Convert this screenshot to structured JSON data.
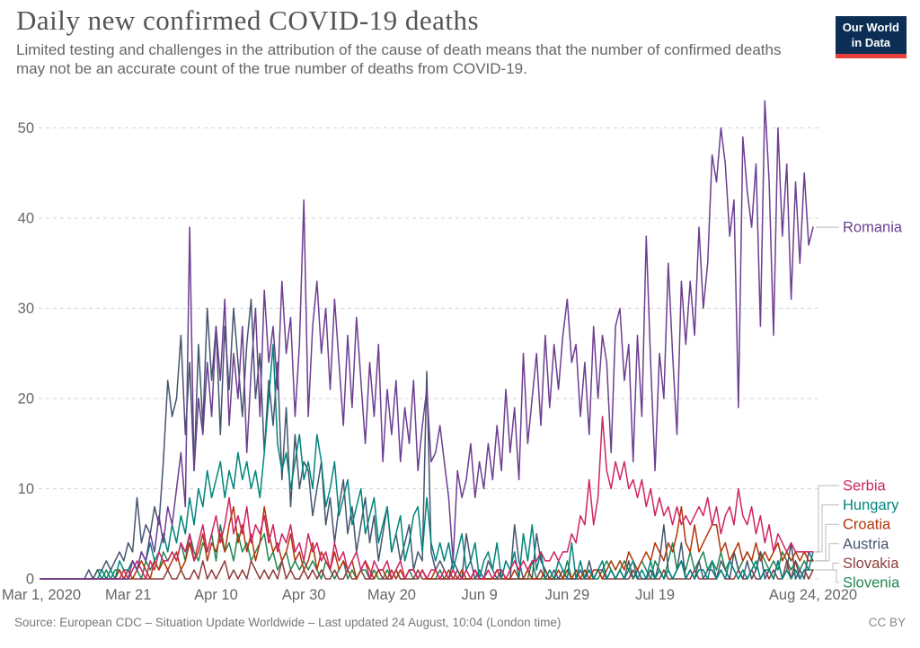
{
  "header": {
    "title": "Daily new confirmed COVID-19 deaths",
    "subtitle": "Limited testing and challenges in the attribution of the cause of death means that the number of confirmed deaths may not be an accurate count of the true number of deaths from COVID-19.",
    "logo": {
      "line1": "Our World",
      "line2": "in Data",
      "bg_color": "#0c2d54",
      "accent_color": "#e5403b"
    }
  },
  "footer": {
    "source": "Source: European CDC – Situation Update Worldwide – Last updated 24 August, 10:04 (London time)",
    "license": "CC BY"
  },
  "chart_data": {
    "type": "line",
    "title": "Daily new confirmed COVID-19 deaths",
    "x_start_date": "Mar 1, 2020",
    "x_end_date": "Aug 24, 2020",
    "x_tick_labels": [
      "Mar 1, 2020",
      "Mar 21",
      "Apr 10",
      "Apr 30",
      "May 20",
      "Jun 9",
      "Jun 29",
      "Jul 19",
      "Aug 24, 2020"
    ],
    "x_tick_days": [
      0,
      20,
      40,
      60,
      80,
      100,
      120,
      140,
      176
    ],
    "y_ticks": [
      0,
      10,
      20,
      30,
      40,
      50
    ],
    "ylim": [
      0,
      53
    ],
    "grid": "dashed-horizontal",
    "legend_position": "right-of-lines",
    "gridline_color": "#d5d5d5",
    "axis_text_color": "#666666",
    "series": [
      {
        "name": "Romania",
        "color": "#6d3e91",
        "values": [
          0,
          0,
          0,
          0,
          0,
          0,
          0,
          0,
          0,
          0,
          0,
          0,
          0,
          0,
          0,
          0,
          0,
          0,
          0,
          0,
          0,
          2,
          1,
          3,
          2,
          5,
          3,
          7,
          4,
          8,
          6,
          10,
          14,
          8,
          39,
          12,
          20,
          16,
          24,
          18,
          28,
          22,
          31,
          17,
          25,
          20,
          28,
          14,
          23,
          30,
          18,
          32,
          24,
          28,
          21,
          33,
          25,
          29,
          18,
          26,
          42,
          18,
          28,
          33,
          25,
          30,
          21,
          31,
          24,
          17,
          27,
          19,
          29,
          22,
          15,
          24,
          18,
          26,
          13,
          21,
          16,
          22,
          13,
          19,
          15,
          22,
          12,
          17,
          21,
          13,
          14,
          17,
          13,
          9,
          2,
          12,
          9,
          11,
          15,
          9,
          13,
          10,
          15,
          11,
          17,
          12,
          21,
          14,
          19,
          11,
          25,
          15,
          20,
          25,
          17,
          27,
          19,
          26,
          21,
          27,
          31,
          24,
          26,
          18,
          24,
          16,
          28,
          20,
          27,
          24,
          14,
          28,
          30,
          22,
          26,
          13,
          27,
          18,
          38,
          24,
          12,
          25,
          20,
          35,
          25,
          16,
          33,
          26,
          33,
          27,
          39,
          30,
          35,
          47,
          44,
          50,
          46,
          38,
          42,
          19,
          49,
          43,
          39,
          46,
          28,
          53,
          44,
          27,
          50,
          38,
          46,
          31,
          44,
          35,
          45,
          37,
          39
        ]
      },
      {
        "name": "Serbia",
        "color": "#cf2364",
        "values": [
          0,
          0,
          0,
          0,
          0,
          0,
          0,
          0,
          0,
          0,
          0,
          0,
          0,
          0,
          0,
          0,
          0,
          0,
          0,
          1,
          0,
          1,
          2,
          1,
          0,
          2,
          1,
          3,
          2,
          2,
          3,
          2,
          4,
          3,
          5,
          2,
          4,
          6,
          3,
          5,
          7,
          4,
          6,
          9,
          5,
          7,
          5,
          8,
          4,
          6,
          5,
          7,
          4,
          6,
          3,
          5,
          4,
          6,
          3,
          4,
          2,
          5,
          3,
          4,
          2,
          3,
          1,
          4,
          2,
          3,
          1,
          2,
          3,
          1,
          2,
          0,
          2,
          1,
          1,
          2,
          0,
          1,
          2,
          0,
          1,
          1,
          0,
          1,
          0,
          1,
          1,
          0,
          1,
          0,
          1,
          0,
          0,
          1,
          0,
          1,
          0,
          0,
          1,
          0,
          1,
          1,
          0,
          1,
          2,
          1,
          2,
          1,
          2,
          2,
          3,
          2,
          2,
          3,
          2,
          3,
          3,
          5,
          4,
          7,
          6,
          11,
          6,
          9,
          18,
          12,
          10,
          13,
          11,
          13,
          10,
          11,
          9,
          11,
          8,
          10,
          7,
          9,
          7,
          8,
          6,
          8,
          6,
          7,
          6,
          7,
          8,
          7,
          9,
          6,
          8,
          5,
          7,
          8,
          6,
          10,
          7,
          6,
          8,
          5,
          7,
          4,
          6,
          3,
          5,
          4,
          3,
          4,
          3,
          3,
          3,
          3,
          3
        ]
      },
      {
        "name": "Hungary",
        "color": "#00847e",
        "values": [
          0,
          0,
          0,
          0,
          0,
          0,
          0,
          0,
          0,
          0,
          0,
          0,
          0,
          0,
          1,
          0,
          1,
          0,
          2,
          1,
          1,
          2,
          1,
          3,
          2,
          4,
          2,
          3,
          5,
          3,
          6,
          4,
          7,
          5,
          9,
          6,
          10,
          8,
          12,
          9,
          11,
          13,
          9,
          12,
          10,
          14,
          11,
          13,
          10,
          12,
          9,
          14,
          20,
          26,
          15,
          12,
          14,
          10,
          13,
          16,
          11,
          13,
          10,
          16,
          13,
          8,
          10,
          13,
          7,
          9,
          11,
          6,
          8,
          10,
          5,
          7,
          9,
          4,
          6,
          8,
          3,
          5,
          7,
          2,
          4,
          7,
          8,
          3,
          9,
          4,
          2,
          4,
          2,
          4,
          1,
          3,
          5,
          1,
          2,
          4,
          0,
          2,
          3,
          1,
          4,
          0,
          2,
          1,
          3,
          0,
          5,
          2,
          6,
          1,
          3,
          0,
          1,
          0,
          2,
          1,
          0,
          4,
          0,
          2,
          0,
          1,
          0,
          1,
          2,
          0,
          1,
          0,
          1,
          0,
          1,
          2,
          0,
          1,
          0,
          2,
          0,
          1,
          0,
          1,
          0,
          1,
          2,
          0,
          1,
          0,
          1,
          1,
          0,
          2,
          0,
          1,
          0,
          2,
          1,
          0,
          1,
          0,
          1,
          2,
          0,
          1,
          1,
          0,
          2,
          0,
          1,
          0,
          1,
          0,
          1,
          1,
          3
        ]
      },
      {
        "name": "Croatia",
        "color": "#b13507",
        "values": [
          0,
          0,
          0,
          0,
          0,
          0,
          0,
          0,
          0,
          0,
          0,
          0,
          0,
          0,
          0,
          0,
          0,
          0,
          1,
          0,
          1,
          0,
          1,
          2,
          1,
          0,
          2,
          1,
          2,
          1,
          2,
          3,
          1,
          2,
          4,
          2,
          3,
          5,
          2,
          4,
          3,
          5,
          3,
          6,
          8,
          4,
          6,
          3,
          5,
          2,
          4,
          8,
          5,
          3,
          4,
          2,
          3,
          5,
          2,
          3,
          1,
          2,
          4,
          1,
          3,
          2,
          1,
          3,
          1,
          2,
          1,
          2,
          0,
          1,
          2,
          1,
          0,
          1,
          1,
          0,
          1,
          0,
          1,
          0,
          1,
          1,
          0,
          1,
          0,
          0,
          1,
          0,
          0,
          1,
          0,
          0,
          1,
          0,
          0,
          1,
          0,
          0,
          0,
          0,
          1,
          0,
          0,
          0,
          1,
          0,
          0,
          1,
          0,
          0,
          0,
          1,
          0,
          0,
          1,
          0,
          1,
          0,
          1,
          0,
          1,
          0,
          1,
          1,
          0,
          1,
          2,
          1,
          2,
          1,
          3,
          2,
          1,
          2,
          3,
          2,
          4,
          3,
          2,
          4,
          3,
          5,
          8,
          4,
          3,
          6,
          3,
          4,
          5,
          6,
          6,
          3,
          4,
          2,
          3,
          4,
          2,
          3,
          2,
          4,
          2,
          3,
          2,
          3,
          4,
          2,
          3,
          2,
          3,
          2,
          3,
          2,
          2
        ]
      },
      {
        "name": "Austria",
        "color": "#44566f",
        "values": [
          0,
          0,
          0,
          0,
          0,
          0,
          0,
          0,
          0,
          0,
          0,
          1,
          0,
          1,
          1,
          2,
          1,
          2,
          3,
          2,
          4,
          3,
          9,
          4,
          6,
          5,
          8,
          6,
          13,
          22,
          18,
          20,
          27,
          16,
          24,
          12,
          26,
          17,
          30,
          22,
          28,
          16,
          28,
          21,
          30,
          24,
          18,
          26,
          31,
          20,
          25,
          14,
          22,
          17,
          24,
          11,
          19,
          8,
          16,
          10,
          13,
          12,
          7,
          10,
          13,
          6,
          9,
          4,
          8,
          11,
          5,
          8,
          3,
          6,
          9,
          4,
          7,
          2,
          5,
          8,
          3,
          5,
          2,
          4,
          6,
          1,
          3,
          2,
          23,
          3,
          1,
          2,
          1,
          0,
          2,
          1,
          0,
          5,
          2,
          0,
          1,
          0,
          2,
          1,
          0,
          1,
          0,
          0,
          6,
          2,
          0,
          1,
          0,
          5,
          2,
          1,
          0,
          1,
          0,
          1,
          0,
          0,
          0,
          1,
          0,
          2,
          0,
          1,
          1,
          0,
          1,
          0,
          1,
          0,
          2,
          0,
          1,
          0,
          0,
          1,
          0,
          2,
          6,
          1,
          0,
          1,
          4,
          0,
          1,
          0,
          2,
          0,
          1,
          1,
          0,
          2,
          1,
          0,
          3,
          1,
          0,
          2,
          0,
          1,
          3,
          0,
          1,
          0,
          2,
          0,
          1,
          4,
          0,
          1,
          0,
          3,
          2
        ]
      },
      {
        "name": "Slovakia",
        "color": "#8f3b3b",
        "values": [
          0,
          0,
          0,
          0,
          0,
          0,
          0,
          0,
          0,
          0,
          0,
          0,
          0,
          0,
          0,
          0,
          0,
          0,
          0,
          0,
          0,
          0,
          0,
          0,
          0,
          0,
          0,
          0,
          0,
          1,
          0,
          0,
          1,
          0,
          0,
          1,
          0,
          2,
          0,
          1,
          0,
          1,
          2,
          0,
          1,
          0,
          1,
          0,
          2,
          1,
          0,
          1,
          0,
          1,
          0,
          2,
          0,
          1,
          0,
          0,
          1,
          0,
          1,
          0,
          1,
          0,
          0,
          1,
          0,
          0,
          1,
          0,
          0,
          1,
          0,
          0,
          0,
          1,
          0,
          0,
          0,
          1,
          0,
          0,
          0,
          0,
          1,
          0,
          0,
          0,
          0,
          0,
          0,
          0,
          0,
          1,
          0,
          0,
          0,
          0,
          0,
          0,
          0,
          0,
          0,
          0,
          0,
          0,
          0,
          0,
          0,
          0,
          0,
          0,
          1,
          0,
          0,
          0,
          0,
          0,
          0,
          0,
          0,
          0,
          0,
          0,
          0,
          1,
          0,
          0,
          0,
          0,
          0,
          0,
          0,
          1,
          0,
          0,
          0,
          0,
          0,
          0,
          1,
          0,
          0,
          0,
          0,
          0,
          0,
          1,
          0,
          0,
          0,
          0,
          0,
          1,
          0,
          0,
          0,
          1,
          0,
          0,
          1,
          0,
          0,
          1,
          0,
          1,
          0,
          0,
          2,
          0,
          2,
          0,
          1,
          0,
          1
        ]
      },
      {
        "name": "Slovenia",
        "color": "#218751",
        "values": [
          0,
          0,
          0,
          0,
          0,
          0,
          0,
          0,
          0,
          0,
          0,
          0,
          0,
          1,
          0,
          1,
          0,
          1,
          1,
          0,
          1,
          2,
          1,
          0,
          2,
          1,
          2,
          1,
          3,
          2,
          3,
          2,
          4,
          2,
          5,
          3,
          2,
          4,
          3,
          5,
          2,
          6,
          3,
          4,
          2,
          5,
          3,
          4,
          2,
          3,
          4,
          5,
          2,
          3,
          1,
          2,
          3,
          1,
          2,
          1,
          2,
          1,
          2,
          1,
          0,
          2,
          1,
          0,
          1,
          2,
          0,
          1,
          0,
          1,
          1,
          0,
          1,
          0,
          0,
          1,
          0,
          1,
          0,
          0,
          1,
          0,
          0,
          1,
          0,
          0,
          0,
          1,
          0,
          0,
          1,
          0,
          0,
          0,
          0,
          1,
          0,
          0,
          0,
          0,
          0,
          1,
          0,
          0,
          0,
          0,
          0,
          0,
          2,
          0,
          0,
          0,
          0,
          0,
          0,
          0,
          2,
          0,
          0,
          1,
          0,
          1,
          0,
          0,
          1,
          2,
          1,
          0,
          1,
          2,
          1,
          0,
          1,
          2,
          1,
          0,
          2,
          1,
          0,
          2,
          4,
          1,
          2,
          1,
          3,
          1,
          2,
          3,
          1,
          2,
          1,
          3,
          1,
          2,
          3,
          1,
          2,
          3,
          2,
          1,
          3,
          2,
          1,
          2,
          1,
          3,
          2,
          1,
          2,
          1,
          2,
          1,
          1
        ]
      }
    ]
  }
}
